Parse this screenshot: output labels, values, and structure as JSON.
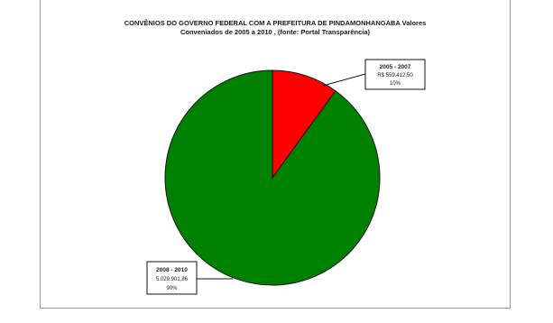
{
  "chart_data": {
    "type": "pie",
    "title_line1": "CONVÊNIOS DO GOVERNO FEDERAL COM A PREFEITURA DE PINDAMONHANGABA Valores",
    "title_line2": "Conveniados de 2005 a 2010 , (fonte: Portal Transparência)",
    "slices": [
      {
        "label": "2005 - 2007",
        "value_text": "R$ 559.412,50",
        "percent_text": "10%",
        "percent": 10,
        "color": "#ff0000"
      },
      {
        "label": "2008 - 2010",
        "value_text": "5.029.901,86",
        "percent_text": "90%",
        "percent": 90,
        "color": "#008000"
      }
    ],
    "legend": "callouts"
  }
}
